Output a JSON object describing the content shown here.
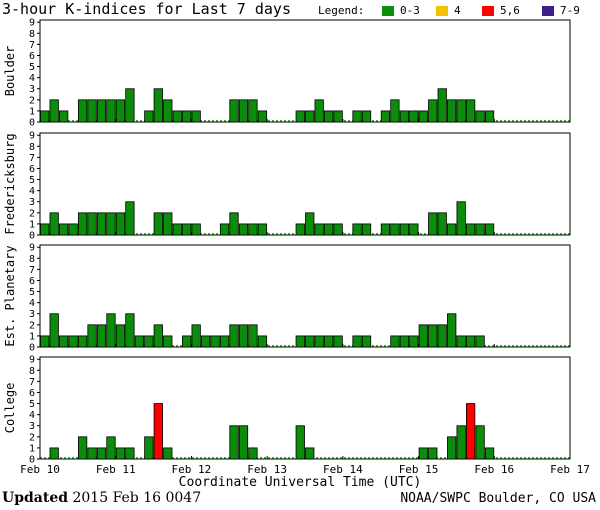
{
  "title": "3-hour K-indices for Last 7 days",
  "legend": {
    "label": "Legend:",
    "items": [
      {
        "label": "0-3",
        "color": "#0b8c0b"
      },
      {
        "label": "4",
        "color": "#f2c200"
      },
      {
        "label": "5,6",
        "color": "#ff0000"
      },
      {
        "label": "7-9",
        "color": "#3b1f8c"
      }
    ]
  },
  "chart_data": {
    "type": "bar",
    "xlabel": "Coordinate Universal Time (UTC)",
    "x_ticks": [
      "Feb 10",
      "Feb 11",
      "Feb 12",
      "Feb 13",
      "Feb 14",
      "Feb 15",
      "Feb 16",
      "Feb 17"
    ],
    "ylim": [
      0,
      9
    ],
    "y_ticks": [
      0,
      1,
      2,
      3,
      4,
      5,
      6,
      7,
      8,
      9
    ],
    "panels": [
      {
        "name": "Boulder",
        "values": [
          1,
          2,
          1,
          0,
          2,
          2,
          2,
          2,
          2,
          3,
          0,
          1,
          3,
          2,
          1,
          1,
          1,
          0,
          0,
          0,
          2,
          2,
          2,
          1,
          0,
          0,
          0,
          1,
          1,
          2,
          1,
          1,
          0,
          1,
          1,
          0,
          1,
          2,
          1,
          1,
          1,
          2,
          3,
          2,
          2,
          2,
          1,
          1
        ]
      },
      {
        "name": "Fredericksburg",
        "values": [
          1,
          2,
          1,
          1,
          2,
          2,
          2,
          2,
          2,
          3,
          0,
          0,
          2,
          2,
          1,
          1,
          1,
          0,
          0,
          1,
          2,
          1,
          1,
          1,
          0,
          0,
          0,
          1,
          2,
          1,
          1,
          1,
          0,
          1,
          1,
          0,
          1,
          1,
          1,
          1,
          0,
          2,
          2,
          1,
          3,
          1,
          1,
          1
        ]
      },
      {
        "name": "Est. Planetary",
        "values": [
          1,
          3,
          1,
          1,
          1,
          2,
          2,
          3,
          2,
          3,
          1,
          1,
          2,
          1,
          0,
          1,
          2,
          1,
          1,
          1,
          2,
          2,
          2,
          1,
          0,
          0,
          0,
          1,
          1,
          1,
          1,
          1,
          0,
          1,
          1,
          0,
          0,
          1,
          1,
          1,
          2,
          2,
          2,
          3,
          1,
          1,
          1
        ]
      },
      {
        "name": "College",
        "values": [
          0,
          1,
          0,
          0,
          2,
          1,
          1,
          2,
          1,
          1,
          0,
          2,
          5,
          1,
          0,
          0,
          0,
          0,
          0,
          0,
          3,
          3,
          1,
          0,
          0,
          0,
          0,
          3,
          1,
          0,
          0,
          0,
          0,
          0,
          0,
          0,
          0,
          0,
          0,
          0,
          1,
          1,
          0,
          2,
          3,
          5,
          3,
          1
        ]
      }
    ]
  },
  "footer": {
    "updated_label": "Updated",
    "updated_value": "2015 Feb 16 0047",
    "source": "NOAA/SWPC Boulder, CO USA"
  }
}
